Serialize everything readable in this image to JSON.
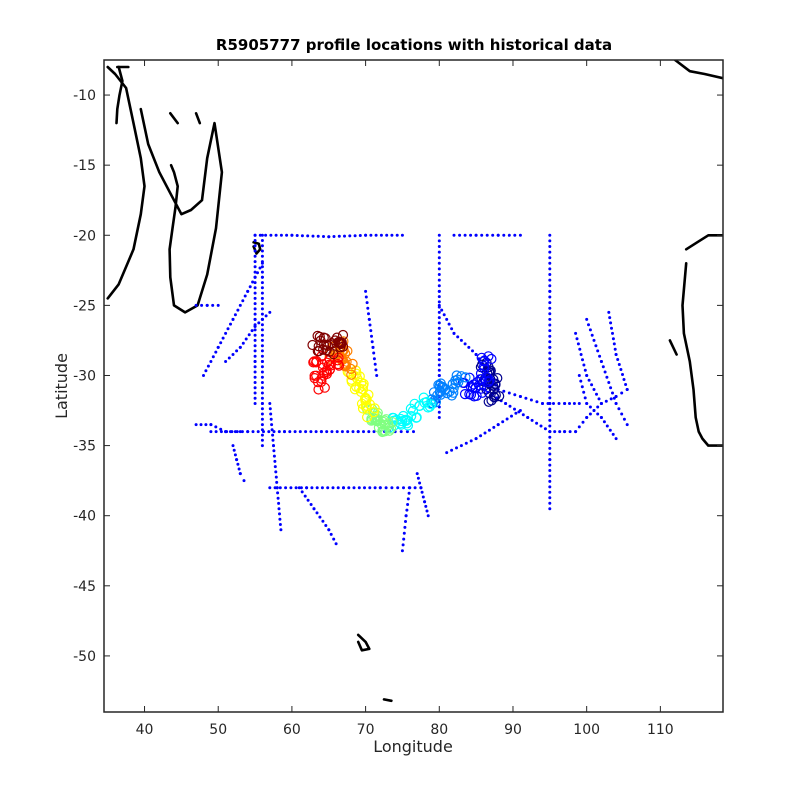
{
  "chart_data": {
    "type": "scatter",
    "title": "R5905777 profile locations with historical data",
    "xlabel": "Longitude",
    "ylabel": "Latitude",
    "xlim": [
      34.5,
      118.5
    ],
    "ylim": [
      -54,
      -7.5
    ],
    "xticks": [
      40,
      50,
      60,
      70,
      80,
      90,
      100,
      110
    ],
    "yticks": [
      -10,
      -15,
      -20,
      -25,
      -30,
      -35,
      -40,
      -45,
      -50
    ],
    "xtick_labels": [
      "40",
      "50",
      "60",
      "70",
      "80",
      "90",
      "100",
      "110"
    ],
    "ytick_labels": [
      "-10",
      "-15",
      "-20",
      "-25",
      "-30",
      "-35",
      "-40",
      "-45",
      "-50"
    ],
    "grid": false,
    "colors": {
      "historical": "#0000ff",
      "coastline": "#000000",
      "colormap": [
        "#00008f",
        "#0000ff",
        "#0080ff",
        "#00ffff",
        "#80ff80",
        "#ffff00",
        "#ff8000",
        "#ff0000",
        "#800000"
      ]
    },
    "historical_tracks": [
      {
        "lon": [
          55,
          60,
          65,
          70,
          75
        ],
        "lat": [
          -20,
          -20,
          -20.1,
          -20,
          -20
        ]
      },
      {
        "lon": [
          56,
          56,
          56,
          56,
          56,
          56
        ],
        "lat": [
          -20,
          -23,
          -26,
          -29,
          -32,
          -35
        ]
      },
      {
        "lon": [
          55,
          55,
          55,
          55,
          55
        ],
        "lat": [
          -20,
          -23,
          -26,
          -29,
          -32
        ]
      },
      {
        "lon": [
          49,
          54,
          59,
          64,
          69,
          74,
          76.5
        ],
        "lat": [
          -34,
          -34,
          -34,
          -34,
          -34,
          -34,
          -34
        ]
      },
      {
        "lon": [
          57,
          62,
          67,
          72,
          77.5
        ],
        "lat": [
          -38,
          -38,
          -38,
          -38,
          -38
        ]
      },
      {
        "lon": [
          80,
          82,
          85,
          88
        ],
        "lat": [
          -25,
          -27,
          -28.5,
          -31
        ]
      },
      {
        "lon": [
          88,
          91,
          94,
          97,
          99
        ],
        "lat": [
          -31,
          -31.5,
          -32,
          -32,
          -32
        ]
      },
      {
        "lon": [
          95,
          95,
          95,
          95,
          95,
          95
        ],
        "lat": [
          -20,
          -24,
          -28,
          -32,
          -36,
          -39.5
        ]
      },
      {
        "lon": [
          80,
          80,
          80,
          80,
          80
        ],
        "lat": [
          -20,
          -24,
          -27,
          -30,
          -33
        ]
      },
      {
        "lon": [
          82,
          85,
          88,
          91
        ],
        "lat": [
          -20,
          -20,
          -20,
          -20
        ]
      },
      {
        "lon": [
          86,
          89,
          92,
          95,
          97,
          98.5
        ],
        "lat": [
          -31,
          -32,
          -33,
          -34,
          -34,
          -34
        ]
      },
      {
        "lon": [
          81,
          85,
          88,
          91
        ],
        "lat": [
          -35.5,
          -34.5,
          -33.5,
          -32.5
        ]
      },
      {
        "lon": [
          98.5,
          100,
          102,
          104,
          105.5
        ],
        "lat": [
          -34,
          -33,
          -32,
          -31.5,
          -31
        ]
      },
      {
        "lon": [
          103,
          104,
          105.5
        ],
        "lat": [
          -25.5,
          -28.5,
          -31
        ]
      },
      {
        "lon": [
          99,
          100,
          102,
          104
        ],
        "lat": [
          -30,
          -32,
          -33,
          -34.5
        ]
      },
      {
        "lon": [
          100,
          102,
          104,
          105.5
        ],
        "lat": [
          -26,
          -29,
          -32,
          -33.5
        ]
      },
      {
        "lon": [
          98.5,
          100,
          102
        ],
        "lat": [
          -27,
          -30,
          -32
        ]
      },
      {
        "lon": [
          57,
          57.5,
          58,
          58.5
        ],
        "lat": [
          -32,
          -35,
          -38,
          -41
        ]
      },
      {
        "lon": [
          47,
          49,
          51,
          53
        ],
        "lat": [
          -33.5,
          -33.5,
          -34,
          -34
        ]
      },
      {
        "lon": [
          48,
          50,
          52,
          54,
          56
        ],
        "lat": [
          -30,
          -28,
          -26,
          -24,
          -22
        ]
      },
      {
        "lon": [
          51,
          53,
          55,
          57
        ],
        "lat": [
          -29,
          -28,
          -26.5,
          -25.5
        ]
      },
      {
        "lon": [
          52,
          52.5,
          53,
          53.5
        ],
        "lat": [
          -35,
          -36,
          -37,
          -37.5
        ]
      },
      {
        "lon": [
          47,
          48.5,
          50
        ],
        "lat": [
          -25,
          -25,
          -25
        ]
      },
      {
        "lon": [
          77,
          77.5,
          78,
          78.5
        ],
        "lat": [
          -37,
          -38,
          -39,
          -40
        ]
      },
      {
        "lon": [
          76,
          75.5,
          75
        ],
        "lat": [
          -38,
          -40,
          -42.5
        ]
      },
      {
        "lon": [
          70,
          70.5,
          71,
          71.5
        ],
        "lat": [
          -24,
          -26,
          -28,
          -30
        ]
      },
      {
        "lon": [
          61,
          63,
          65,
          66
        ],
        "lat": [
          -38,
          -39.5,
          -41,
          -42
        ]
      }
    ],
    "float_profiles": {
      "lon": [
        87.5,
        87.3,
        87,
        86.8,
        86.5,
        86.2,
        86,
        85.5,
        85,
        84,
        83,
        82,
        81,
        80,
        79,
        78,
        77,
        76,
        75,
        74,
        73,
        72.5,
        72,
        71.5,
        71,
        70.5,
        70,
        69.5,
        69,
        68.5,
        68,
        67.5,
        67,
        66.5,
        66,
        65.5,
        65,
        64.5,
        64,
        63.8,
        63.5,
        64,
        65,
        66,
        67
      ],
      "lat": [
        -31.5,
        -31,
        -30.5,
        -30,
        -29.5,
        -29,
        -30,
        -31,
        -30.5,
        -31,
        -30.5,
        -31,
        -31,
        -30.8,
        -31.5,
        -32,
        -32.5,
        -33,
        -33.5,
        -33.5,
        -33.8,
        -33.5,
        -33,
        -33.2,
        -32.8,
        -32.5,
        -32,
        -31,
        -30.5,
        -30,
        -29.5,
        -29,
        -28.5,
        -28,
        -28.5,
        -29,
        -29.5,
        -30,
        -30.5,
        -29,
        -28,
        -27.5,
        -28,
        -27.5,
        -28
      ]
    },
    "coastlines": [
      {
        "lon": [
          35,
          36.5,
          38.5,
          39.5,
          40,
          39.5,
          38.5,
          37.5,
          36,
          35
        ],
        "lat": [
          -24.5,
          -23.5,
          -21,
          -18.5,
          -16.5,
          -14.5,
          -12,
          -9.5,
          -8.5,
          -8
        ]
      },
      {
        "lon": [
          36.5,
          37,
          36.6,
          36.3,
          36.2
        ],
        "lat": [
          -8,
          -9,
          -10,
          -11,
          -12
        ]
      },
      {
        "lon": [
          39.5,
          40.5,
          42,
          43.5,
          45,
          46.3,
          47.8,
          48.5,
          49.5,
          50.5,
          49.7,
          48.5,
          47.2,
          45.5,
          44,
          43.5,
          43.4,
          43.8,
          44.2,
          44.5,
          44,
          43.6
        ],
        "lat": [
          -11,
          -13.5,
          -15.5,
          -17,
          -18.5,
          -18.2,
          -17.5,
          -14.5,
          -12,
          -15.5,
          -19.5,
          -22.8,
          -25,
          -25.5,
          -25,
          -23,
          -21,
          -19.5,
          -18,
          -16.5,
          -15.5,
          -15
        ]
      },
      {
        "lon": [
          36.3,
          37.8
        ],
        "lat": [
          -8,
          -8
        ]
      },
      {
        "lon": [
          112,
          114,
          116,
          118.5
        ],
        "lat": [
          -7.5,
          -8.3,
          -8.5,
          -8.8
        ]
      },
      {
        "lon": [
          113.5,
          115,
          116.5,
          118.5
        ],
        "lat": [
          -21,
          -20.5,
          -20,
          -20
        ]
      },
      {
        "lon": [
          113.5,
          113,
          113.2,
          114,
          114.5,
          114.8,
          115.2,
          115.7,
          116.5,
          118.5
        ],
        "lat": [
          -22,
          -25,
          -27,
          -29,
          -31,
          -33,
          -34,
          -34.5,
          -35,
          -35
        ]
      },
      {
        "lon": [
          54.8,
          55.5,
          55.7,
          55.2,
          54.8
        ],
        "lat": [
          -20.5,
          -20.6,
          -21,
          -21.3,
          -20.8
        ]
      },
      {
        "lon": [
          69,
          70,
          70.5,
          69.5,
          69
        ],
        "lat": [
          -48.5,
          -49,
          -49.5,
          -49.6,
          -49
        ]
      },
      {
        "lon": [
          43.5,
          44.5
        ],
        "lat": [
          -11.3,
          -12
        ]
      },
      {
        "lon": [
          47,
          47.5
        ],
        "lat": [
          -11.3,
          -12
        ]
      },
      {
        "lon": [
          72.5,
          73.5
        ],
        "lat": [
          -53.1,
          -53.2
        ]
      },
      {
        "lon": [
          111.3,
          112.2
        ],
        "lat": [
          -27.5,
          -28.5
        ]
      }
    ]
  }
}
